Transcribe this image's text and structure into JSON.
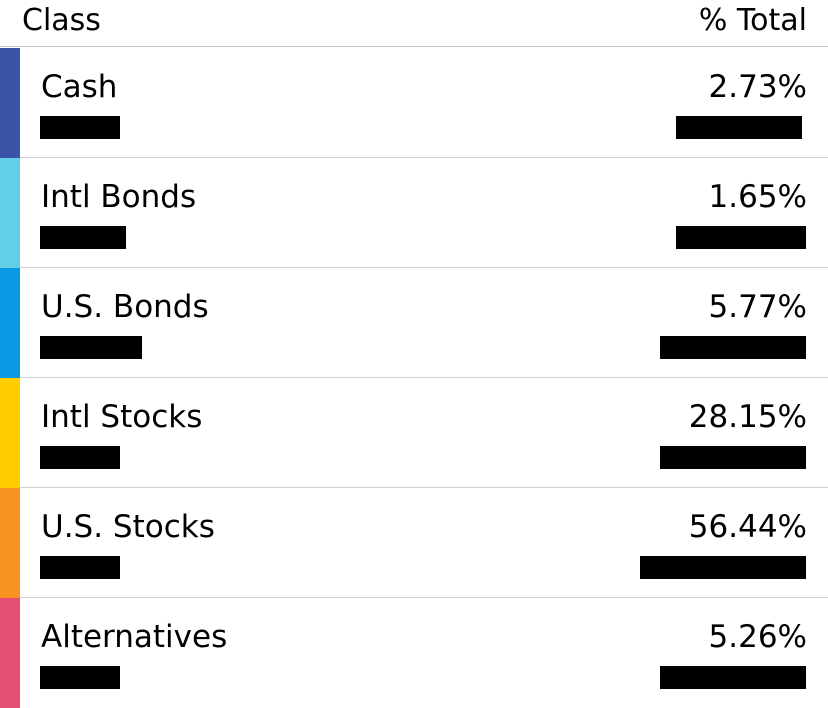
{
  "header": {
    "class_label": "Class",
    "total_label": "% Total"
  },
  "rows": [
    {
      "name": "Cash",
      "percent": "2.73%",
      "color": "#3a55a8"
    },
    {
      "name": "Intl Bonds",
      "percent": "1.65%",
      "color": "#63cfe6"
    },
    {
      "name": "U.S. Bonds",
      "percent": "5.77%",
      "color": "#0999e2"
    },
    {
      "name": "Intl Stocks",
      "percent": "28.15%",
      "color": "#ffcc00"
    },
    {
      "name": "U.S. Stocks",
      "percent": "56.44%",
      "color": "#f89221"
    },
    {
      "name": "Alternatives",
      "percent": "5.26%",
      "color": "#e54f75"
    }
  ]
}
